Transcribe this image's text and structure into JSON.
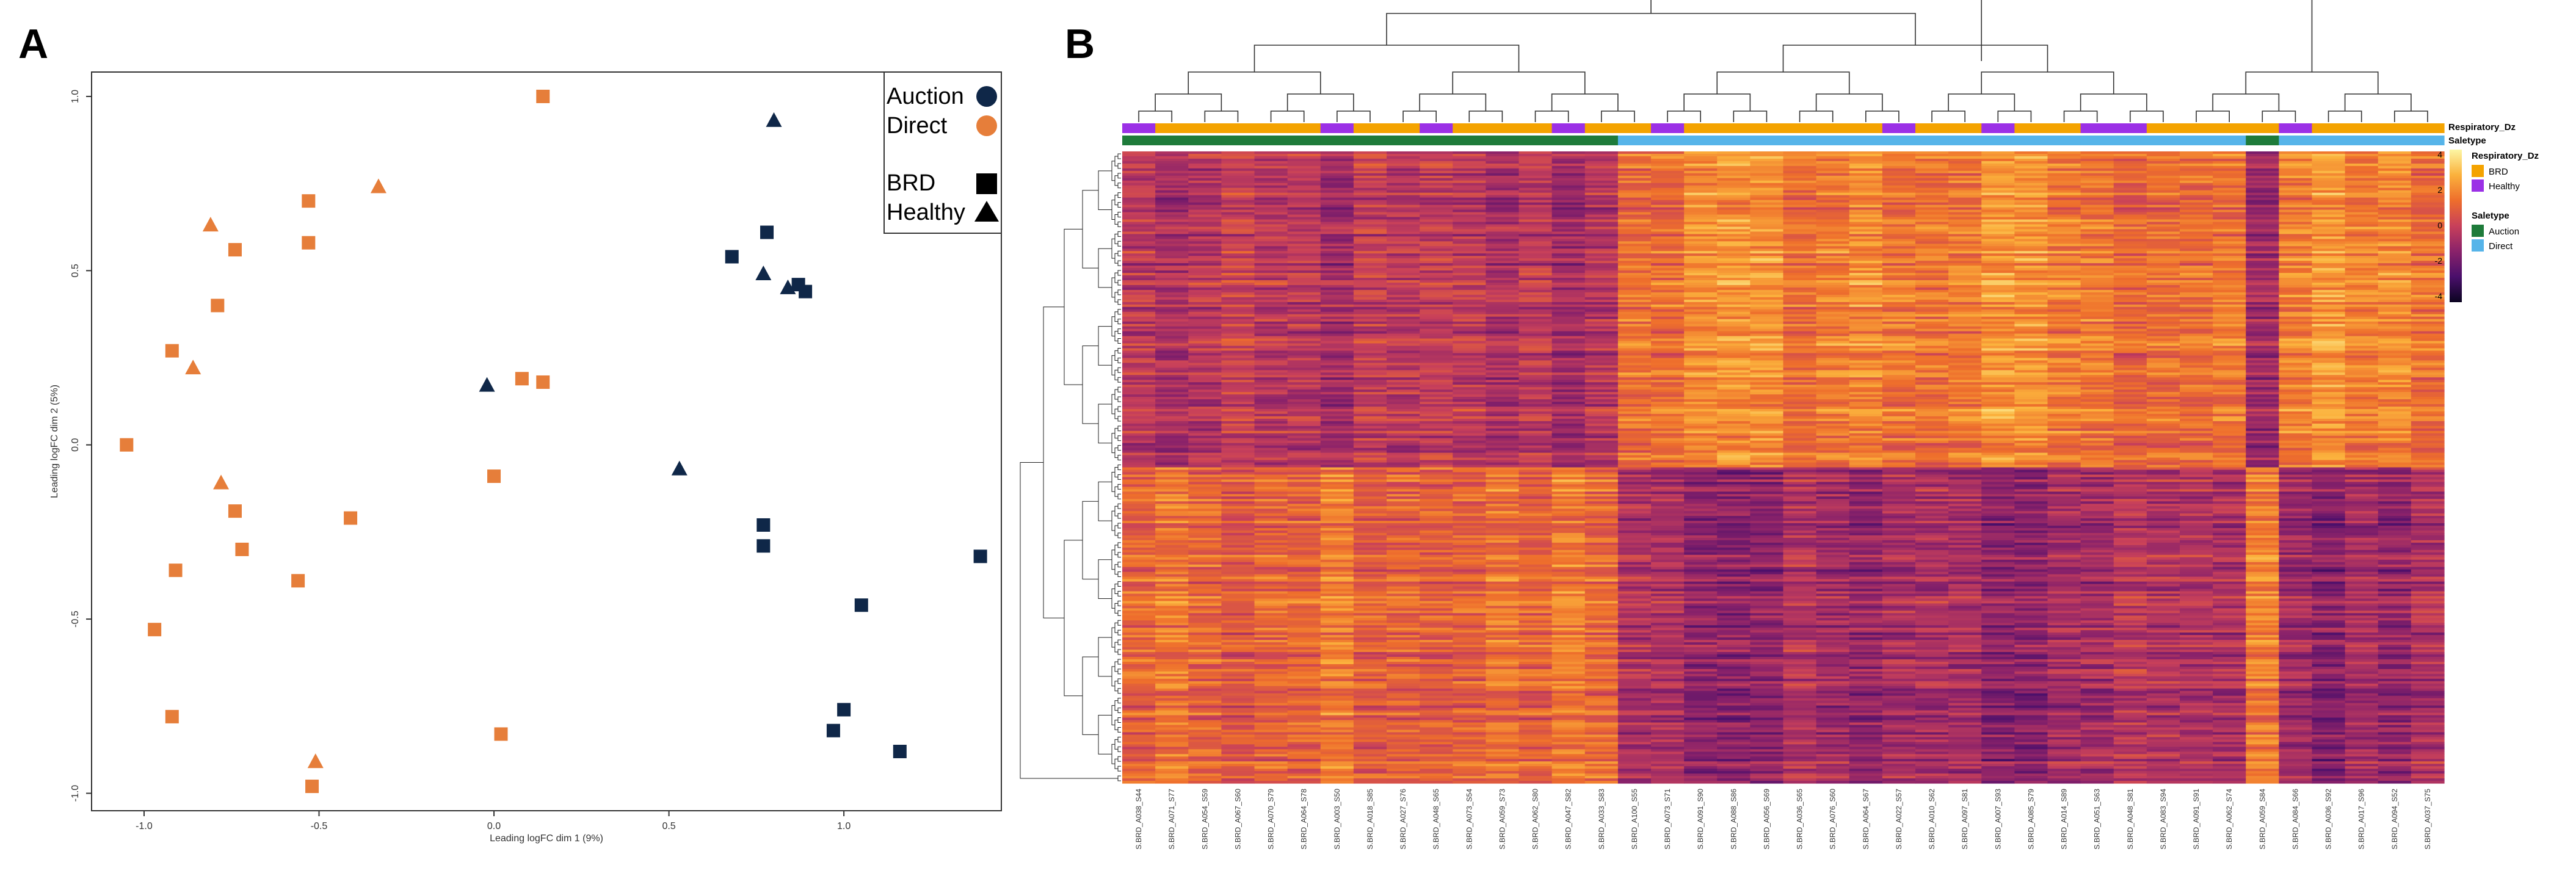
{
  "panels": {
    "a": {
      "letter": "A"
    },
    "b": {
      "letter": "B"
    }
  },
  "colors": {
    "auction": "#0f2748",
    "direct": "#e67e3a",
    "brd": "#f4a300",
    "healthy": "#9b30e6",
    "auction_bar": "#1e7b3a",
    "direct_bar": "#56b4e9"
  },
  "chart_data": [
    {
      "type": "scatter",
      "title": "",
      "xlabel": "Leading logFC dim 1 (9%)",
      "ylabel": "Leading logFC dim 2 (5%)",
      "xlim": [
        -1.15,
        1.45
      ],
      "ylim": [
        -1.05,
        1.07
      ],
      "xticks": [
        -1.0,
        -0.5,
        0.0,
        0.5,
        1.0
      ],
      "yticks": [
        1.0,
        0.5,
        0.0,
        -0.5,
        -1.0
      ],
      "xtick_labels": [
        "-1.0",
        "-0.5",
        "0.0",
        "0.5",
        "1.0"
      ],
      "ytick_labels": [
        "1.0",
        "0.5",
        "0.0",
        "-0.5",
        "-1.0"
      ],
      "legend": {
        "position": "top-right",
        "color_entries": [
          {
            "label": "Auction",
            "group": "auction"
          },
          {
            "label": "Direct",
            "group": "direct"
          }
        ],
        "shape_entries": [
          {
            "label": "BRD",
            "shape": "square"
          },
          {
            "label": "Healthy",
            "shape": "triangle"
          }
        ]
      },
      "series": [
        {
          "name": "Direct BRD",
          "group": "direct",
          "shape": "square",
          "x": [
            0.14,
            -0.53,
            -0.53,
            -0.74,
            -0.79,
            -0.92,
            -1.05,
            0.08,
            0.14,
            0.0,
            -0.74,
            -0.41,
            -0.72,
            -0.56,
            -0.91,
            -0.97,
            -0.92,
            0.02,
            -0.52
          ],
          "y": [
            1.0,
            0.7,
            0.58,
            0.56,
            0.4,
            0.27,
            0.0,
            0.19,
            0.18,
            -0.09,
            -0.19,
            -0.21,
            -0.3,
            -0.39,
            -0.36,
            -0.53,
            -0.78,
            -0.83,
            -0.98
          ]
        },
        {
          "name": "Direct Healthy",
          "group": "direct",
          "shape": "triangle",
          "x": [
            -0.81,
            -0.33,
            -0.86,
            -0.78,
            -0.51
          ],
          "y": [
            0.63,
            0.74,
            0.22,
            -0.11,
            -0.91
          ]
        },
        {
          "name": "Auction BRD",
          "group": "auction",
          "shape": "square",
          "x": [
            0.68,
            0.78,
            0.87,
            0.89,
            0.77,
            0.77,
            1.39,
            1.05,
            1.0,
            0.97,
            1.16
          ],
          "y": [
            0.54,
            0.61,
            0.46,
            0.44,
            -0.23,
            -0.29,
            -0.32,
            -0.46,
            -0.76,
            -0.82,
            -0.88
          ]
        },
        {
          "name": "Auction Healthy",
          "group": "auction",
          "shape": "triangle",
          "x": [
            0.8,
            0.77,
            0.84,
            -0.02,
            0.53
          ],
          "y": [
            0.93,
            0.49,
            0.45,
            0.17,
            -0.07
          ]
        }
      ]
    },
    {
      "type": "heatmap",
      "colorscale_ticks": [
        "4",
        "2",
        "0",
        "-2",
        "-4"
      ],
      "colorscale_range": [
        -4.5,
        4.5
      ],
      "colorscale_colors": [
        "#0b0420",
        "#4a0f6b",
        "#8a226a",
        "#c8405a",
        "#ee6e2c",
        "#fbb13c",
        "#fcf6a4"
      ],
      "row_count": 260,
      "column_count": 40,
      "annotation_labels": [
        "Respiratory_Dz",
        "Saletype"
      ],
      "legend": {
        "respiratory_title": "Respiratory_Dz",
        "respiratory_items": [
          {
            "label": "BRD",
            "group": "brd"
          },
          {
            "label": "Healthy",
            "group": "healthy"
          }
        ],
        "saletype_title": "Saletype",
        "saletype_items": [
          {
            "label": "Auction",
            "group": "auction_bar"
          },
          {
            "label": "Direct",
            "group": "direct_bar"
          }
        ]
      },
      "respiratory_dz": [
        "Healthy",
        "BRD",
        "BRD",
        "BRD",
        "BRD",
        "BRD",
        "Healthy",
        "BRD",
        "BRD",
        "Healthy",
        "BRD",
        "BRD",
        "BRD",
        "Healthy",
        "BRD",
        "BRD",
        "Healthy",
        "BRD",
        "BRD",
        "BRD",
        "BRD",
        "BRD",
        "BRD",
        "Healthy",
        "BRD",
        "BRD",
        "Healthy",
        "BRD",
        "BRD",
        "Healthy",
        "Healthy",
        "BRD",
        "BRD",
        "BRD",
        "BRD",
        "Healthy",
        "BRD",
        "BRD",
        "BRD",
        "BRD"
      ],
      "saletype": [
        "Auction",
        "Auction",
        "Auction",
        "Auction",
        "Auction",
        "Auction",
        "Auction",
        "Auction",
        "Auction",
        "Auction",
        "Auction",
        "Auction",
        "Auction",
        "Auction",
        "Auction",
        "Direct",
        "Direct",
        "Direct",
        "Direct",
        "Direct",
        "Direct",
        "Direct",
        "Direct",
        "Direct",
        "Direct",
        "Direct",
        "Direct",
        "Direct",
        "Direct",
        "Direct",
        "Direct",
        "Direct",
        "Direct",
        "Direct",
        "Auction",
        "Direct",
        "Direct",
        "Direct",
        "Direct",
        "Direct"
      ],
      "column_labels": [
        "S.BRD_A038_S44",
        "S.BRD_A071_S77",
        "S.BRD_A054_S59",
        "S.BRD_A067_S60",
        "S.BRD_A070_S79",
        "S.BRD_A064_S78",
        "S.BRD_A003_S50",
        "S.BRD_A018_S85",
        "S.BRD_A027_S76",
        "S.BRD_A048_S65",
        "S.BRD_A073_S54",
        "S.BRD_A059_S73",
        "S.BRD_A062_S80",
        "S.BRD_A047_S82",
        "S.BRD_A033_S83",
        "S.BRD_A100_S55",
        "S.BRD_A073_S71",
        "S.BRD_A091_S90",
        "S.BRD_A088_S86",
        "S.BRD_A056_S69",
        "S.BRD_A036_S65",
        "S.BRD_A076_S60",
        "S.BRD_A064_S67",
        "S.BRD_A022_S57",
        "S.BRD_A010_S62",
        "S.BRD_A097_S81",
        "S.BRD_A007_S93",
        "S.BRD_A085_S79",
        "S.BRD_A014_S89",
        "S.BRD_A051_S63",
        "S.BRD_A048_S81",
        "S.BRD_A083_S94",
        "S.BRD_A091_S91",
        "S.BRD_A062_S74",
        "S.BRD_A059_S84",
        "S.BRD_A084_S66",
        "S.BRD_A036_S92",
        "S.BRD_A017_S96",
        "S.BRD_A094_S52",
        "S.BRD_A037_S75"
      ]
    }
  ]
}
